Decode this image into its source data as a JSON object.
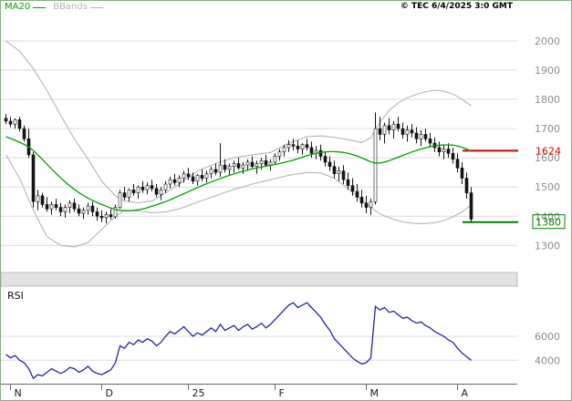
{
  "legend": {
    "ma20": "MA20",
    "bbands": "BBands"
  },
  "copyright": "© TEC 6/4/2025 3:0 GMT",
  "rsi_panel": {
    "label": "RSI"
  },
  "colors": {
    "ma20": "#00A000",
    "bbands": "#b5b5b5",
    "rsi": "#2323b0",
    "grid": "#dcdcdc",
    "candle": "#151515",
    "axis_text": "#8c8c8c",
    "month_text": "#1a1a1a",
    "marker_resistance": "#CC0000",
    "marker_support": "#008000",
    "separator_fill": "#e3e3e3",
    "separator_edge": "#bdbdbd",
    "axis_line": "#666666"
  },
  "chart_data": [
    {
      "type": "candlestick",
      "name": "price-panel",
      "title": "",
      "ylim": [
        1170,
        2090
      ],
      "price_ticks": [
        2000,
        1900,
        1800,
        1700,
        1600,
        1500,
        1400,
        1300
      ],
      "month_ticks": [
        {
          "label": "N",
          "index": 1
        },
        {
          "label": "D",
          "index": 21
        },
        {
          "label": "25",
          "index": 40
        },
        {
          "label": "F",
          "index": 59
        },
        {
          "label": "M",
          "index": 79
        },
        {
          "label": "A",
          "index": 99
        }
      ],
      "markers": [
        {
          "label": "1624",
          "value": 1624,
          "color": "#CC0000",
          "boxed": false
        },
        {
          "label": "1380",
          "value": 1380,
          "color": "#008000",
          "boxed": true
        }
      ],
      "candles": [
        [
          1735,
          1750,
          1715,
          1725
        ],
        [
          1725,
          1740,
          1705,
          1715
        ],
        [
          1715,
          1735,
          1700,
          1730
        ],
        [
          1730,
          1740,
          1690,
          1700
        ],
        [
          1700,
          1710,
          1655,
          1665
        ],
        [
          1665,
          1700,
          1600,
          1610
        ],
        [
          1610,
          1620,
          1430,
          1450
        ],
        [
          1450,
          1490,
          1420,
          1470
        ],
        [
          1470,
          1480,
          1430,
          1440
        ],
        [
          1440,
          1465,
          1415,
          1425
        ],
        [
          1425,
          1450,
          1405,
          1440
        ],
        [
          1440,
          1460,
          1420,
          1430
        ],
        [
          1430,
          1445,
          1400,
          1415
        ],
        [
          1415,
          1440,
          1395,
          1430
        ],
        [
          1430,
          1455,
          1410,
          1445
        ],
        [
          1445,
          1460,
          1415,
          1425
        ],
        [
          1425,
          1440,
          1400,
          1410
        ],
        [
          1410,
          1430,
          1390,
          1420
        ],
        [
          1420,
          1445,
          1405,
          1435
        ],
        [
          1435,
          1450,
          1400,
          1415
        ],
        [
          1415,
          1430,
          1385,
          1400
        ],
        [
          1400,
          1420,
          1380,
          1395
        ],
        [
          1395,
          1415,
          1375,
          1405
        ],
        [
          1405,
          1425,
          1390,
          1398
        ],
        [
          1398,
          1440,
          1392,
          1430
        ],
        [
          1430,
          1490,
          1425,
          1480
        ],
        [
          1480,
          1500,
          1455,
          1465
        ],
        [
          1465,
          1495,
          1450,
          1490
        ],
        [
          1490,
          1510,
          1470,
          1480
        ],
        [
          1480,
          1505,
          1460,
          1500
        ],
        [
          1500,
          1520,
          1480,
          1490
        ],
        [
          1490,
          1515,
          1475,
          1505
        ],
        [
          1505,
          1525,
          1485,
          1495
        ],
        [
          1495,
          1510,
          1465,
          1475
        ],
        [
          1475,
          1500,
          1455,
          1490
        ],
        [
          1490,
          1520,
          1480,
          1510
        ],
        [
          1510,
          1535,
          1495,
          1525
        ],
        [
          1525,
          1545,
          1505,
          1515
        ],
        [
          1515,
          1540,
          1500,
          1530
        ],
        [
          1530,
          1555,
          1515,
          1545
        ],
        [
          1545,
          1565,
          1525,
          1535
        ],
        [
          1535,
          1550,
          1510,
          1520
        ],
        [
          1520,
          1545,
          1505,
          1540
        ],
        [
          1540,
          1560,
          1520,
          1530
        ],
        [
          1530,
          1555,
          1515,
          1545
        ],
        [
          1545,
          1570,
          1530,
          1560
        ],
        [
          1560,
          1580,
          1540,
          1550
        ],
        [
          1550,
          1650,
          1535,
          1575
        ],
        [
          1575,
          1595,
          1550,
          1560
        ],
        [
          1560,
          1580,
          1540,
          1570
        ],
        [
          1570,
          1590,
          1550,
          1580
        ],
        [
          1580,
          1600,
          1560,
          1565
        ],
        [
          1565,
          1585,
          1545,
          1575
        ],
        [
          1575,
          1595,
          1555,
          1585
        ],
        [
          1585,
          1605,
          1565,
          1570
        ],
        [
          1570,
          1590,
          1545,
          1580
        ],
        [
          1580,
          1600,
          1560,
          1590
        ],
        [
          1590,
          1610,
          1570,
          1575
        ],
        [
          1575,
          1595,
          1555,
          1585
        ],
        [
          1585,
          1615,
          1575,
          1605
        ],
        [
          1605,
          1630,
          1590,
          1620
        ],
        [
          1620,
          1645,
          1605,
          1635
        ],
        [
          1635,
          1660,
          1620,
          1645
        ],
        [
          1645,
          1665,
          1625,
          1640
        ],
        [
          1640,
          1660,
          1615,
          1630
        ],
        [
          1630,
          1650,
          1610,
          1645
        ],
        [
          1645,
          1665,
          1625,
          1635
        ],
        [
          1635,
          1655,
          1600,
          1615
        ],
        [
          1615,
          1640,
          1595,
          1625
        ],
        [
          1625,
          1645,
          1590,
          1605
        ],
        [
          1605,
          1620,
          1570,
          1585
        ],
        [
          1585,
          1605,
          1555,
          1570
        ],
        [
          1570,
          1590,
          1530,
          1545
        ],
        [
          1545,
          1570,
          1520,
          1555
        ],
        [
          1555,
          1575,
          1510,
          1525
        ],
        [
          1525,
          1550,
          1490,
          1505
        ],
        [
          1505,
          1530,
          1470,
          1485
        ],
        [
          1485,
          1510,
          1450,
          1465
        ],
        [
          1465,
          1490,
          1430,
          1445
        ],
        [
          1445,
          1470,
          1410,
          1430
        ],
        [
          1430,
          1460,
          1405,
          1450
        ],
        [
          1450,
          1755,
          1440,
          1700
        ],
        [
          1700,
          1740,
          1660,
          1680
        ],
        [
          1680,
          1720,
          1650,
          1710
        ],
        [
          1710,
          1735,
          1680,
          1695
        ],
        [
          1695,
          1725,
          1665,
          1715
        ],
        [
          1715,
          1740,
          1690,
          1700
        ],
        [
          1700,
          1720,
          1665,
          1680
        ],
        [
          1680,
          1710,
          1655,
          1695
        ],
        [
          1695,
          1715,
          1670,
          1685
        ],
        [
          1685,
          1705,
          1650,
          1665
        ],
        [
          1665,
          1695,
          1640,
          1680
        ],
        [
          1680,
          1700,
          1655,
          1665
        ],
        [
          1665,
          1685,
          1635,
          1650
        ],
        [
          1650,
          1670,
          1620,
          1635
        ],
        [
          1635,
          1655,
          1605,
          1620
        ],
        [
          1620,
          1645,
          1595,
          1630
        ],
        [
          1630,
          1650,
          1600,
          1615
        ],
        [
          1615,
          1635,
          1580,
          1595
        ],
        [
          1595,
          1615,
          1550,
          1565
        ],
        [
          1565,
          1585,
          1510,
          1530
        ],
        [
          1530,
          1550,
          1460,
          1480
        ],
        [
          1480,
          1500,
          1380,
          1390
        ]
      ],
      "overlays": {
        "ma20": {
          "name": "MA20",
          "values": [
            1672,
            1666,
            1660,
            1653,
            1646,
            1637,
            1625,
            1610,
            1594,
            1578,
            1562,
            1546,
            1531,
            1517,
            1504,
            1492,
            1481,
            1471,
            1462,
            1454,
            1447,
            1440,
            1434,
            1428,
            1423,
            1420,
            1419,
            1419,
            1420,
            1422,
            1425,
            1429,
            1434,
            1439,
            1444,
            1450,
            1456,
            1463,
            1470,
            1477,
            1484,
            1491,
            1498,
            1505,
            1511,
            1517,
            1523,
            1529,
            1535,
            1540,
            1545,
            1550,
            1554,
            1558,
            1562,
            1565,
            1568,
            1571,
            1574,
            1577,
            1580,
            1584,
            1588,
            1592,
            1597,
            1602,
            1607,
            1611,
            1615,
            1618,
            1620,
            1621,
            1621,
            1620,
            1618,
            1615,
            1611,
            1606,
            1600,
            1593,
            1586,
            1582,
            1582,
            1585,
            1590,
            1596,
            1602,
            1608,
            1614,
            1620,
            1625,
            1630,
            1634,
            1638,
            1641,
            1643,
            1644,
            1644,
            1643,
            1640,
            1636,
            1630,
            1622
          ]
        },
        "bbands": {
          "name": "BBands",
          "upper": [
            [
              0,
              2000
            ],
            [
              3,
              1965
            ],
            [
              6,
              1905
            ],
            [
              9,
              1830
            ],
            [
              12,
              1745
            ],
            [
              15,
              1665
            ],
            [
              18,
              1595
            ],
            [
              21,
              1520
            ],
            [
              24,
              1470
            ],
            [
              26,
              1452
            ],
            [
              29,
              1446
            ],
            [
              32,
              1452
            ],
            [
              35,
              1480
            ],
            [
              38,
              1510
            ],
            [
              42,
              1555
            ],
            [
              46,
              1580
            ],
            [
              50,
              1600
            ],
            [
              54,
              1610
            ],
            [
              58,
              1618
            ],
            [
              62,
              1650
            ],
            [
              66,
              1672
            ],
            [
              69,
              1675
            ],
            [
              72,
              1670
            ],
            [
              75,
              1662
            ],
            [
              78,
              1652
            ],
            [
              80,
              1668
            ],
            [
              82,
              1722
            ],
            [
              84,
              1762
            ],
            [
              86,
              1788
            ],
            [
              88,
              1805
            ],
            [
              90,
              1817
            ],
            [
              92,
              1826
            ],
            [
              94,
              1831
            ],
            [
              96,
              1828
            ],
            [
              98,
              1818
            ],
            [
              100,
              1800
            ],
            [
              102,
              1778
            ]
          ],
          "lower": [
            [
              0,
              1610
            ],
            [
              3,
              1530
            ],
            [
              6,
              1420
            ],
            [
              9,
              1330
            ],
            [
              12,
              1300
            ],
            [
              15,
              1295
            ],
            [
              18,
              1310
            ],
            [
              21,
              1355
            ],
            [
              24,
              1400
            ],
            [
              26,
              1420
            ],
            [
              29,
              1418
            ],
            [
              32,
              1412
            ],
            [
              35,
              1415
            ],
            [
              38,
              1425
            ],
            [
              42,
              1448
            ],
            [
              46,
              1470
            ],
            [
              50,
              1492
            ],
            [
              54,
              1510
            ],
            [
              58,
              1525
            ],
            [
              62,
              1540
            ],
            [
              66,
              1550
            ],
            [
              69,
              1548
            ],
            [
              72,
              1530
            ],
            [
              75,
              1495
            ],
            [
              78,
              1455
            ],
            [
              80,
              1430
            ],
            [
              82,
              1408
            ],
            [
              84,
              1395
            ],
            [
              86,
              1385
            ],
            [
              88,
              1378
            ],
            [
              90,
              1375
            ],
            [
              92,
              1375
            ],
            [
              94,
              1378
            ],
            [
              96,
              1385
            ],
            [
              98,
              1398
            ],
            [
              100,
              1415
            ],
            [
              102,
              1438
            ]
          ]
        }
      }
    },
    {
      "type": "line",
      "name": "RSI",
      "ylim": [
        22,
        95
      ],
      "ticks": [
        {
          "label": "6000",
          "value": 60
        },
        {
          "label": "4000",
          "value": 40
        }
      ],
      "values": [
        45,
        42,
        44,
        40,
        38,
        33,
        25,
        28,
        27,
        30,
        33,
        31,
        29,
        31,
        34,
        33,
        30,
        32,
        35,
        31,
        29,
        28,
        30,
        32,
        38,
        52,
        50,
        55,
        53,
        57,
        55,
        58,
        56,
        52,
        55,
        60,
        64,
        62,
        65,
        68,
        64,
        60,
        63,
        61,
        64,
        67,
        64,
        70,
        65,
        67,
        69,
        65,
        68,
        70,
        66,
        68,
        71,
        67,
        70,
        74,
        78,
        82,
        86,
        88,
        84,
        86,
        88,
        84,
        80,
        76,
        70,
        65,
        58,
        54,
        50,
        46,
        42,
        39,
        37,
        38,
        42,
        85,
        82,
        84,
        80,
        81,
        78,
        75,
        76,
        73,
        71,
        72,
        69,
        67,
        64,
        62,
        60,
        57,
        55,
        50,
        46,
        43,
        40
      ]
    }
  ]
}
